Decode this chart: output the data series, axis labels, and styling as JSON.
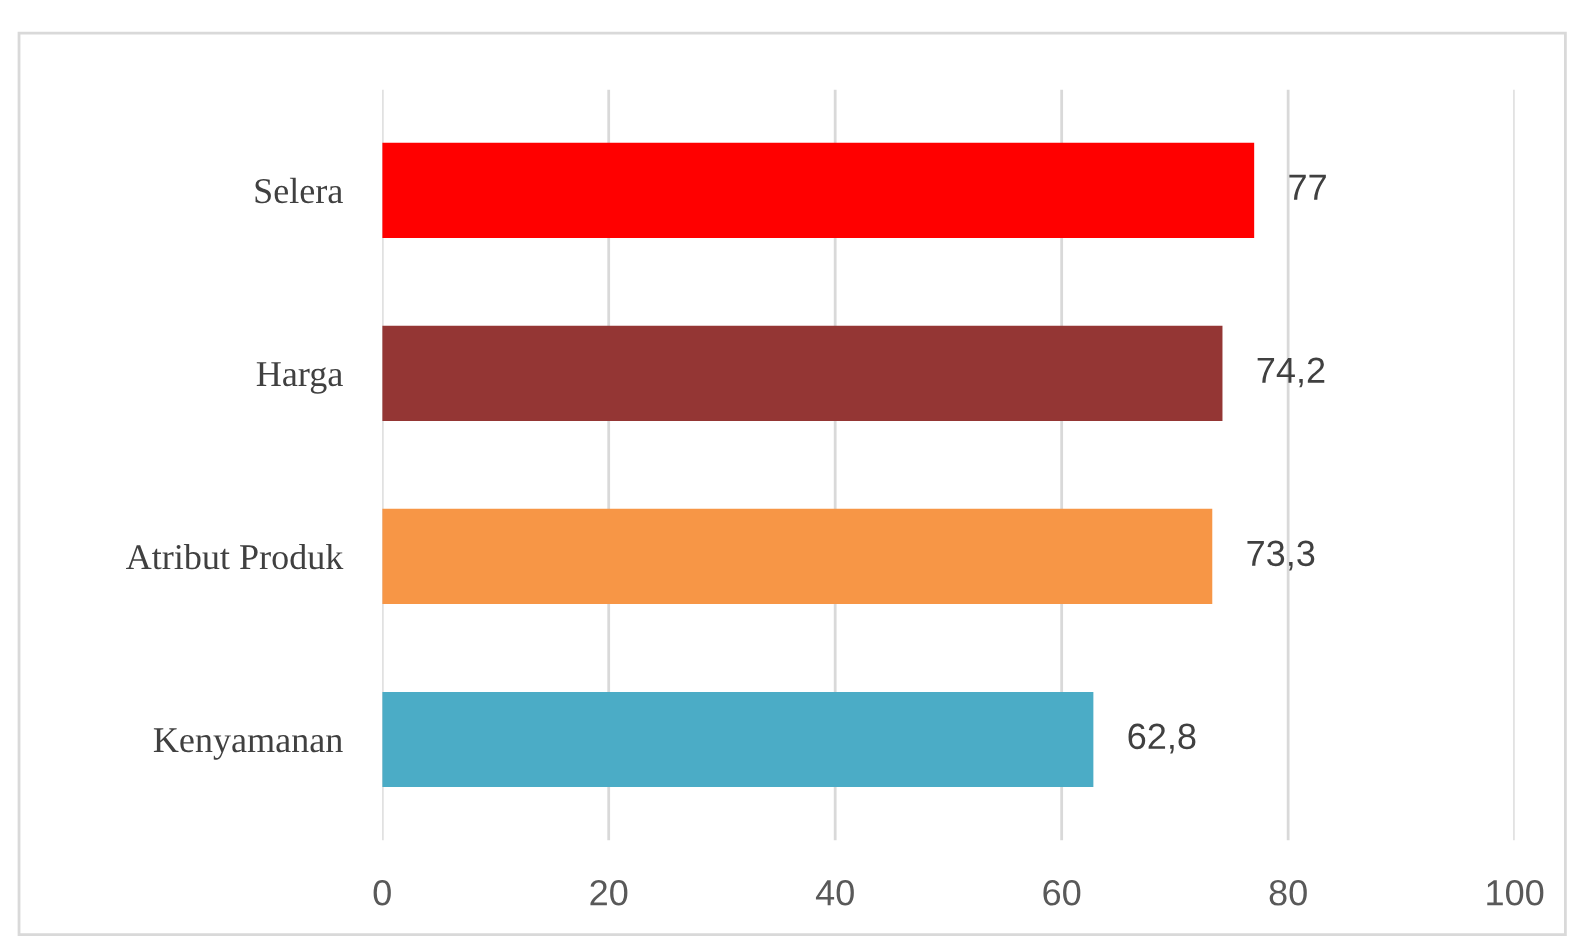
{
  "chart_data": {
    "type": "bar",
    "orientation": "horizontal",
    "categories": [
      "Selera",
      "Harga",
      "Atribut Produk",
      "Kenyamanan"
    ],
    "values": [
      77,
      74.2,
      73.3,
      62.8
    ],
    "colors": [
      "#ff0000",
      "#943634",
      "#f79646",
      "#4bacc6"
    ],
    "value_labels": [
      "77",
      "74,2",
      "73,3",
      "62,8"
    ],
    "xlim": [
      0,
      100
    ],
    "xticks": [
      0,
      20,
      40,
      60,
      80,
      100
    ],
    "grid": "x",
    "legend": false
  }
}
